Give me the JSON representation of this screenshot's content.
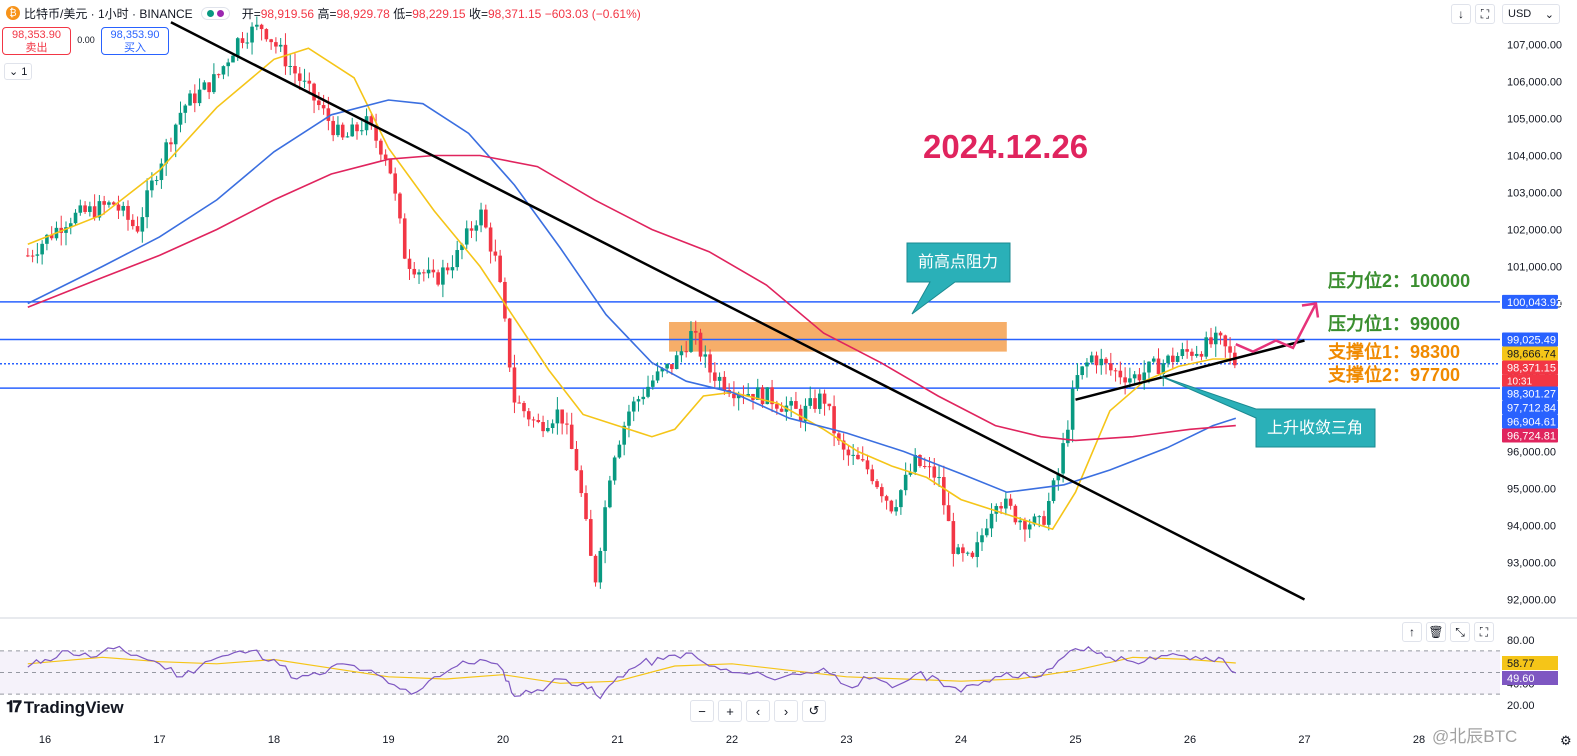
{
  "header": {
    "symbol": "比特币/美元 · 1小时 · BINANCE",
    "open_label": "开=",
    "open": "98,919.56",
    "high_label": "高=",
    "high": "98,929.78",
    "low_label": "低=",
    "low": "98,229.15",
    "close_label": "收=",
    "close": "98,371.15",
    "change": "−603.03 (−0.61%)",
    "currency": "USD"
  },
  "trade": {
    "sell_price": "98,353.90",
    "sell_label": "卖出",
    "buy_price": "98,353.90",
    "buy_label": "买入",
    "spread": "0.00",
    "lot": "1"
  },
  "branding": {
    "name": "TradingView",
    "watermark": "@北辰BTC"
  },
  "colors": {
    "up": "#089981",
    "down": "#f23645",
    "ma_fast": "#f5c518",
    "ma_mid": "#3b6fe0",
    "ma_slow": "#e0245e",
    "level": "#2962ff",
    "annotation": "#2ab0b8",
    "resistance_text": "#3a8e2f",
    "support_text": "#f08a00",
    "date_text": "#e0245e",
    "rsi": "#7e57c2"
  },
  "chart_data": {
    "type": "candlestick",
    "title": "2024.12.26",
    "ylim": [
      91500,
      107500
    ],
    "x_ticks": [
      "16",
      "17",
      "18",
      "19",
      "20",
      "21",
      "22",
      "23",
      "24",
      "25",
      "26",
      "27",
      "28"
    ],
    "y_ticks": [
      "107,000.00",
      "106,000.00",
      "105,000.00",
      "104,000.00",
      "103,000.00",
      "102,000.00",
      "101,000.00",
      "100,000.00",
      "99,000.00",
      "98,000.00",
      "97,000.00",
      "96,000.00",
      "95,000.00",
      "94,000.00",
      "93,000.00",
      "92,000.00"
    ],
    "price_series": [
      {
        "x": 15.85,
        "y": 101300
      },
      {
        "x": 16.2,
        "y": 102300
      },
      {
        "x": 16.6,
        "y": 102700
      },
      {
        "x": 16.8,
        "y": 102000
      },
      {
        "x": 17.0,
        "y": 103800
      },
      {
        "x": 17.2,
        "y": 105300
      },
      {
        "x": 17.5,
        "y": 106100
      },
      {
        "x": 17.7,
        "y": 107200
      },
      {
        "x": 17.9,
        "y": 107500
      },
      {
        "x": 18.1,
        "y": 106600
      },
      {
        "x": 18.4,
        "y": 105300
      },
      {
        "x": 18.6,
        "y": 104400
      },
      {
        "x": 18.8,
        "y": 104900
      },
      {
        "x": 19.0,
        "y": 103900
      },
      {
        "x": 19.15,
        "y": 101200
      },
      {
        "x": 19.4,
        "y": 100600
      },
      {
        "x": 19.6,
        "y": 101300
      },
      {
        "x": 19.8,
        "y": 102500
      },
      {
        "x": 19.95,
        "y": 101000
      },
      {
        "x": 20.1,
        "y": 97400
      },
      {
        "x": 20.3,
        "y": 96700
      },
      {
        "x": 20.5,
        "y": 97100
      },
      {
        "x": 20.65,
        "y": 95500
      },
      {
        "x": 20.8,
        "y": 92400
      },
      {
        "x": 20.95,
        "y": 95800
      },
      {
        "x": 21.1,
        "y": 97100
      },
      {
        "x": 21.3,
        "y": 97900
      },
      {
        "x": 21.5,
        "y": 98400
      },
      {
        "x": 21.65,
        "y": 99200
      },
      {
        "x": 21.8,
        "y": 98200
      },
      {
        "x": 22.0,
        "y": 97700
      },
      {
        "x": 22.3,
        "y": 97500
      },
      {
        "x": 22.6,
        "y": 97000
      },
      {
        "x": 22.8,
        "y": 97500
      },
      {
        "x": 22.95,
        "y": 96000
      },
      {
        "x": 23.2,
        "y": 95500
      },
      {
        "x": 23.4,
        "y": 94500
      },
      {
        "x": 23.6,
        "y": 95700
      },
      {
        "x": 23.8,
        "y": 95300
      },
      {
        "x": 23.95,
        "y": 93200
      },
      {
        "x": 24.1,
        "y": 93000
      },
      {
        "x": 24.3,
        "y": 94800
      },
      {
        "x": 24.5,
        "y": 94200
      },
      {
        "x": 24.7,
        "y": 94000
      },
      {
        "x": 24.85,
        "y": 95400
      },
      {
        "x": 25.0,
        "y": 97900
      },
      {
        "x": 25.15,
        "y": 98600
      },
      {
        "x": 25.3,
        "y": 98200
      },
      {
        "x": 25.5,
        "y": 98000
      },
      {
        "x": 25.7,
        "y": 98300
      },
      {
        "x": 25.9,
        "y": 98600
      },
      {
        "x": 26.1,
        "y": 98800
      },
      {
        "x": 26.25,
        "y": 99000
      },
      {
        "x": 26.4,
        "y": 98371
      }
    ],
    "moving_averages": [
      {
        "name": "ma_fast",
        "points": [
          [
            15.85,
            101600
          ],
          [
            16.5,
            102400
          ],
          [
            17.0,
            103600
          ],
          [
            17.5,
            105300
          ],
          [
            18.0,
            106600
          ],
          [
            18.3,
            106900
          ],
          [
            18.7,
            106100
          ],
          [
            19.0,
            104200
          ],
          [
            19.4,
            102500
          ],
          [
            19.8,
            101000
          ],
          [
            20.1,
            99600
          ],
          [
            20.4,
            98200
          ],
          [
            20.7,
            97000
          ],
          [
            21.0,
            96700
          ],
          [
            21.3,
            96400
          ],
          [
            21.5,
            96600
          ],
          [
            21.75,
            97500
          ],
          [
            22.0,
            97600
          ],
          [
            22.4,
            97300
          ],
          [
            22.8,
            96600
          ],
          [
            23.1,
            96000
          ],
          [
            23.4,
            95600
          ],
          [
            23.7,
            95300
          ],
          [
            24.0,
            94700
          ],
          [
            24.4,
            94300
          ],
          [
            24.8,
            93900
          ],
          [
            25.0,
            94900
          ],
          [
            25.3,
            97100
          ],
          [
            25.6,
            97900
          ],
          [
            25.9,
            98300
          ],
          [
            26.2,
            98500
          ],
          [
            26.4,
            98500
          ]
        ]
      },
      {
        "name": "ma_mid",
        "points": [
          [
            15.85,
            100000
          ],
          [
            16.5,
            101000
          ],
          [
            17.0,
            101800
          ],
          [
            17.5,
            102800
          ],
          [
            18.0,
            104100
          ],
          [
            18.5,
            105100
          ],
          [
            19.0,
            105500
          ],
          [
            19.3,
            105400
          ],
          [
            19.7,
            104600
          ],
          [
            20.1,
            103200
          ],
          [
            20.5,
            101500
          ],
          [
            20.9,
            99700
          ],
          [
            21.3,
            98400
          ],
          [
            21.6,
            97900
          ],
          [
            22.0,
            97600
          ],
          [
            22.5,
            96900
          ],
          [
            23.0,
            96500
          ],
          [
            23.5,
            96000
          ],
          [
            24.0,
            95400
          ],
          [
            24.4,
            94900
          ],
          [
            24.9,
            95100
          ],
          [
            25.3,
            95500
          ],
          [
            25.8,
            96100
          ],
          [
            26.2,
            96700
          ],
          [
            26.4,
            96900
          ]
        ]
      },
      {
        "name": "ma_slow",
        "points": [
          [
            15.85,
            99900
          ],
          [
            16.5,
            100700
          ],
          [
            17.0,
            101300
          ],
          [
            17.5,
            102000
          ],
          [
            18.0,
            102800
          ],
          [
            18.5,
            103500
          ],
          [
            19.0,
            103900
          ],
          [
            19.4,
            104000
          ],
          [
            19.8,
            104000
          ],
          [
            20.3,
            103700
          ],
          [
            20.8,
            102800
          ],
          [
            21.3,
            102000
          ],
          [
            21.8,
            101400
          ],
          [
            22.3,
            100500
          ],
          [
            22.8,
            99200
          ],
          [
            23.3,
            98400
          ],
          [
            23.8,
            97500
          ],
          [
            24.3,
            96700
          ],
          [
            24.7,
            96400
          ],
          [
            25.0,
            96300
          ],
          [
            25.5,
            96400
          ],
          [
            26.0,
            96600
          ],
          [
            26.4,
            96700
          ]
        ]
      }
    ],
    "horizontal_levels": [
      100043.92,
      99025.49,
      98371.15,
      97712.84
    ],
    "price_labels": [
      {
        "value": 100043.92,
        "text": "100,043.92",
        "color": "#2962ff"
      },
      {
        "value": 99025.49,
        "text": "99,025.49",
        "color": "#2962ff"
      },
      {
        "value": 98666.74,
        "text": "98,666.74",
        "color": "#f5c518"
      },
      {
        "value": 98371.15,
        "text": "98,371.15",
        "color": "#f23645"
      },
      {
        "value": 98301.27,
        "text": "98,301.27",
        "color": "#2962ff"
      },
      {
        "value": 97712.84,
        "text": "97,712.84",
        "color": "#2962ff"
      },
      {
        "value": 96904.61,
        "text": "96,904.61",
        "color": "#2962ff"
      },
      {
        "value": 96724.81,
        "text": "96,724.81",
        "color": "#e0245e"
      }
    ],
    "countdown": "10:31",
    "trend_lines": [
      {
        "name": "downtrend",
        "from": [
          17.1,
          107600
        ],
        "to": [
          27.0,
          92000
        ]
      },
      {
        "name": "uptrend",
        "from": [
          25.0,
          97400
        ],
        "to": [
          27.0,
          99000
        ]
      }
    ],
    "resistance_zone": {
      "x0": 21.45,
      "x1": 24.4,
      "y0": 98700,
      "y1": 99500
    },
    "projection": [
      [
        26.4,
        98900
      ],
      [
        26.55,
        98700
      ],
      [
        26.75,
        99000
      ],
      [
        26.9,
        98800
      ],
      [
        27.1,
        100000
      ]
    ],
    "annotations": {
      "resistance_zone_label": "前高点阻力",
      "triangle_label": "上升收敛三角",
      "resistance_2": "压力位2：100000",
      "resistance_1": "压力位1：99000",
      "support_1": "支撑位1：98300",
      "support_2": "支撑位2：97700"
    },
    "rsi": {
      "ylim": [
        20,
        80
      ],
      "ticks": [
        "80.00",
        "40.00",
        "20.00"
      ],
      "levels": [
        70,
        50,
        30
      ],
      "rsi_value": "49.60",
      "ma_value": "58.77",
      "series": [
        [
          15.85,
          55
        ],
        [
          16.0,
          62
        ],
        [
          16.2,
          70
        ],
        [
          16.4,
          64
        ],
        [
          16.6,
          72
        ],
        [
          16.8,
          66
        ],
        [
          17.0,
          58
        ],
        [
          17.2,
          46
        ],
        [
          17.4,
          60
        ],
        [
          17.6,
          66
        ],
        [
          17.8,
          70
        ],
        [
          18.0,
          62
        ],
        [
          18.2,
          44
        ],
        [
          18.4,
          48
        ],
        [
          18.6,
          58
        ],
        [
          18.8,
          52
        ],
        [
          19.0,
          40
        ],
        [
          19.2,
          30
        ],
        [
          19.4,
          46
        ],
        [
          19.6,
          56
        ],
        [
          19.8,
          62
        ],
        [
          20.0,
          52
        ],
        [
          20.1,
          28
        ],
        [
          20.3,
          34
        ],
        [
          20.5,
          44
        ],
        [
          20.7,
          40
        ],
        [
          20.85,
          26
        ],
        [
          21.0,
          46
        ],
        [
          21.2,
          58
        ],
        [
          21.4,
          62
        ],
        [
          21.6,
          68
        ],
        [
          21.8,
          56
        ],
        [
          22.0,
          50
        ],
        [
          22.3,
          46
        ],
        [
          22.6,
          48
        ],
        [
          22.8,
          54
        ],
        [
          23.0,
          38
        ],
        [
          23.2,
          44
        ],
        [
          23.4,
          36
        ],
        [
          23.6,
          48
        ],
        [
          23.8,
          44
        ],
        [
          24.0,
          32
        ],
        [
          24.2,
          42
        ],
        [
          24.4,
          50
        ],
        [
          24.6,
          46
        ],
        [
          24.8,
          54
        ],
        [
          25.0,
          72
        ],
        [
          25.15,
          70
        ],
        [
          25.3,
          64
        ],
        [
          25.5,
          60
        ],
        [
          25.7,
          62
        ],
        [
          25.9,
          66
        ],
        [
          26.1,
          62
        ],
        [
          26.25,
          64
        ],
        [
          26.4,
          49.6
        ]
      ],
      "ma_series": [
        [
          15.85,
          58
        ],
        [
          16.5,
          64
        ],
        [
          17.0,
          60
        ],
        [
          17.5,
          58
        ],
        [
          18.0,
          62
        ],
        [
          18.5,
          54
        ],
        [
          19.0,
          46
        ],
        [
          19.5,
          44
        ],
        [
          20.0,
          48
        ],
        [
          20.5,
          40
        ],
        [
          21.0,
          42
        ],
        [
          21.5,
          56
        ],
        [
          22.0,
          58
        ],
        [
          22.5,
          52
        ],
        [
          23.0,
          46
        ],
        [
          23.5,
          44
        ],
        [
          24.0,
          42
        ],
        [
          24.5,
          44
        ],
        [
          25.0,
          52
        ],
        [
          25.5,
          64
        ],
        [
          26.0,
          62
        ],
        [
          26.4,
          58.77
        ]
      ]
    }
  }
}
